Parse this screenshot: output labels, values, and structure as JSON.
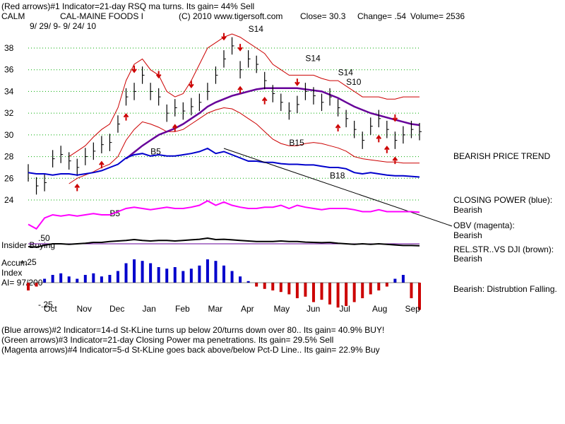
{
  "header": {
    "line1": "(Red arrows)#1 Indicator=21-day RSQ ma turns. Its gain= 44% Sell",
    "ticker": "CALM",
    "company": "CAL-MAINE FOODS I",
    "copyright": "(C) 2010 www.tigersoft.com",
    "close": "Close=  30.3",
    "change": "Change= .54",
    "volume": "Volume= 2536",
    "date_range": "9/ 29/ 9-  9/ 24/ 10"
  },
  "footer": {
    "line1": "(Blue arrows)#2 Indicator=14-d St-KLine turns up below 20/turns down over 80.. Its gain= 40.9% BUY!",
    "line2": "(Green arrows)#3 Indicator=21-day Closing Power ma penetrations. Its gain= 29.5% Sell",
    "line3": "(Magenta arrows)#4 Indicator=5-d St-KLine goes back above/below Pct-D Line.. Its gain= 22.9% Buy"
  },
  "right_labels": {
    "trend": "BEARISH PRICE TREND",
    "cp_title": "CLOSING POWER (blue):",
    "cp_value": "Bearish",
    "obv_title": "OBV (magenta):",
    "obv_value": "Bearish",
    "rel_title": "REL.STR..VS DJI (brown):",
    "rel_value": "Bearish",
    "accum_text": "Bearish: Distrubtion Falling."
  },
  "left_labels": {
    "insider": "Insider Buying",
    "accum": "Accum",
    "index": "Index",
    "ai": "AI= 97/200",
    "plus25": "+.25",
    "minus25": "-.25",
    "p50": ".50"
  },
  "colors": {
    "price_bar": "#000000",
    "band": "#cc0000",
    "ma": "#660099",
    "closing_power": "#0000cc",
    "obv": "#ff00ff",
    "rel_str": "#000000",
    "accum_pos": "#0000cc",
    "accum_neg": "#cc0000",
    "arrow_red": "#cc0000",
    "grid": "#00aa00"
  },
  "chart_data": {
    "type": "line",
    "title": "CAL-MAINE FOODS I",
    "y_ticks": [
      38,
      36,
      34,
      32,
      30,
      28,
      26,
      24
    ],
    "x_ticks": [
      "Oct",
      "Nov",
      "Dec",
      "Jan",
      "Feb",
      "Mar",
      "Apr",
      "May",
      "Jun",
      "Jul",
      "Aug",
      "Sep"
    ],
    "ylim": [
      23,
      40
    ],
    "series": [
      {
        "name": "price",
        "values": [
          26.5,
          25.3,
          25.6,
          27.8,
          28.2,
          27.6,
          27.0,
          28.0,
          28.5,
          29.1,
          29.3,
          31.0,
          33.5,
          34.0,
          35.5,
          34.0,
          33.5,
          32.0,
          32.5,
          32.2,
          32.6,
          33.0,
          34.0,
          35.5,
          37.0,
          38.2,
          36.0,
          37.0,
          36.5,
          35.0,
          33.8,
          33.0,
          32.2,
          32.8,
          34.0,
          33.6,
          33.0,
          33.5,
          32.5,
          31.5,
          30.5,
          29.5,
          30.8,
          31.5,
          30.5,
          29.5,
          30.0,
          30.5,
          30.3
        ]
      },
      {
        "name": "upper_band",
        "values": [
          null,
          null,
          null,
          null,
          null,
          28.0,
          28.5,
          29.0,
          29.8,
          30.5,
          31.0,
          32.5,
          35.0,
          36.5,
          37.0,
          36.0,
          35.5,
          34.0,
          33.5,
          33.8,
          35.0,
          36.5,
          38.0,
          38.5,
          39.0,
          39.3,
          39.0,
          38.5,
          38.0,
          37.5,
          36.5,
          36.0,
          35.5,
          35.5,
          35.5,
          35.5,
          35.2,
          35.0,
          35.0,
          34.5,
          34.0,
          33.5,
          33.5,
          33.5,
          33.3,
          33.3,
          33.5,
          33.5,
          33.5
        ]
      },
      {
        "name": "lower_band",
        "values": [
          null,
          null,
          null,
          null,
          null,
          25.5,
          26.0,
          26.3,
          26.6,
          27.0,
          27.3,
          28.0,
          29.5,
          30.5,
          31.2,
          31.0,
          30.7,
          30.3,
          30.3,
          30.5,
          31.0,
          31.5,
          32.0,
          32.3,
          32.5,
          32.4,
          32.0,
          31.5,
          31.0,
          30.3,
          29.6,
          29.2,
          29.0,
          29.0,
          29.2,
          29.3,
          29.2,
          29.0,
          28.8,
          28.5,
          28.0,
          27.8,
          27.7,
          27.6,
          27.5,
          27.5,
          27.4,
          27.4,
          27.4
        ]
      },
      {
        "name": "ma",
        "values": [
          null,
          null,
          null,
          null,
          null,
          null,
          null,
          null,
          null,
          null,
          null,
          null,
          27.8,
          28.4,
          29.0,
          29.5,
          30.0,
          30.3,
          30.6,
          31.0,
          31.5,
          32.0,
          32.6,
          33.0,
          33.3,
          33.6,
          33.8,
          34.0,
          34.2,
          34.3,
          34.3,
          34.3,
          34.3,
          34.3,
          34.2,
          34.1,
          34.0,
          33.7,
          33.4,
          33.0,
          32.6,
          32.3,
          32.0,
          31.8,
          31.6,
          31.4,
          31.2,
          31.0,
          30.9
        ]
      }
    ],
    "annotations": [
      "S14",
      "S14",
      "S14",
      "S10",
      "B5",
      "B5",
      "B15",
      "B18"
    ]
  },
  "panels": {
    "closing_power": [
      0.62,
      0.6,
      0.6,
      0.58,
      0.6,
      0.6,
      0.58,
      0.6,
      0.62,
      0.65,
      0.7,
      0.75,
      0.85,
      0.9,
      0.92,
      0.88,
      0.9,
      0.88,
      0.88,
      0.9,
      0.92,
      0.95,
      1.0,
      0.92,
      0.95,
      0.9,
      0.85,
      0.8,
      0.8,
      0.78,
      0.78,
      0.76,
      0.75,
      0.75,
      0.74,
      0.74,
      0.72,
      0.7,
      0.7,
      0.68,
      0.62,
      0.6,
      0.62,
      0.6,
      0.58,
      0.57,
      0.57,
      0.56,
      0.55
    ],
    "obv": [
      0.25,
      0.18,
      0.35,
      0.4,
      0.38,
      0.4,
      0.38,
      0.4,
      0.42,
      0.4,
      0.4,
      0.45,
      0.5,
      0.52,
      0.5,
      0.48,
      0.5,
      0.52,
      0.5,
      0.5,
      0.52,
      0.55,
      0.62,
      0.55,
      0.6,
      0.55,
      0.52,
      0.5,
      0.5,
      0.52,
      0.52,
      0.55,
      0.5,
      0.55,
      0.52,
      0.5,
      0.48,
      0.5,
      0.5,
      0.5,
      0.48,
      0.45,
      0.45,
      0.48,
      0.45,
      0.45,
      0.45,
      0.45,
      0.44
    ],
    "rel_str": [
      0.4,
      0.38,
      0.45,
      0.5,
      0.5,
      0.48,
      0.5,
      0.52,
      0.55,
      0.55,
      0.58,
      0.6,
      0.62,
      0.65,
      0.62,
      0.6,
      0.62,
      0.62,
      0.6,
      0.62,
      0.64,
      0.66,
      0.7,
      0.65,
      0.66,
      0.64,
      0.62,
      0.6,
      0.58,
      0.58,
      0.58,
      0.6,
      0.58,
      0.58,
      0.56,
      0.55,
      0.54,
      0.55,
      0.52,
      0.5,
      0.48,
      0.5,
      0.48,
      0.5,
      0.48,
      0.46,
      0.44,
      0.44,
      0.43
    ],
    "accum": [
      -0.1,
      -0.05,
      0.05,
      0.1,
      0.12,
      0.08,
      0.05,
      0.1,
      0.12,
      0.08,
      0.1,
      0.15,
      0.25,
      0.3,
      0.28,
      0.25,
      0.2,
      0.18,
      0.2,
      0.15,
      0.18,
      0.22,
      0.3,
      0.28,
      0.22,
      0.15,
      0.08,
      0.02,
      -0.05,
      -0.08,
      -0.1,
      -0.12,
      -0.15,
      -0.2,
      -0.18,
      -0.25,
      -0.22,
      -0.28,
      -0.32,
      -0.3,
      -0.25,
      -0.2,
      -0.15,
      -0.1,
      -0.05,
      0.05,
      0.1,
      -0.2,
      -0.35
    ]
  }
}
